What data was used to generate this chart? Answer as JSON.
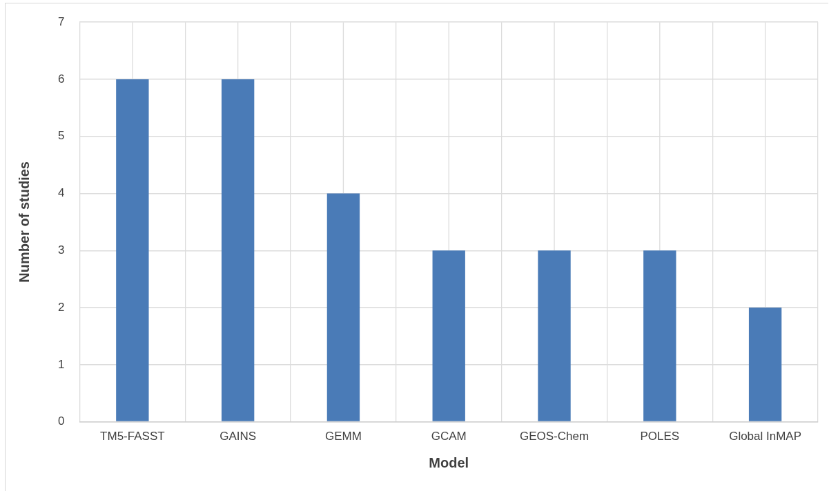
{
  "chart_data": {
    "type": "bar",
    "xlabel": "Model",
    "ylabel": "Number of studies",
    "categories": [
      "TM5-FASST",
      "GAINS",
      "GEMM",
      "GCAM",
      "GEOS-Chem",
      "POLES",
      "Global InMAP"
    ],
    "values": [
      6,
      6,
      4,
      3,
      3,
      3,
      2
    ],
    "color": "#4a7bb7",
    "ylim": [
      0,
      7
    ],
    "yticks": [
      0,
      1,
      2,
      3,
      4,
      5,
      6,
      7
    ],
    "grid": true,
    "legend": false
  }
}
